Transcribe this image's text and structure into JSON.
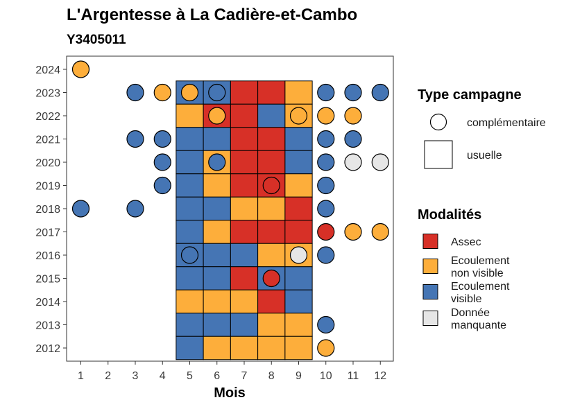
{
  "chart_data": {
    "type": "heatmap",
    "title": "L'Argentesse à La Cadière-et-Cambo",
    "subtitle": "Y3405011",
    "xlabel": "Mois",
    "ylabel": "",
    "x_ticks": [
      "1",
      "2",
      "3",
      "4",
      "5",
      "6",
      "7",
      "8",
      "9",
      "10",
      "11",
      "12"
    ],
    "y_ticks": [
      "2012",
      "2013",
      "2014",
      "2015",
      "2016",
      "2017",
      "2018",
      "2019",
      "2020",
      "2021",
      "2022",
      "2023",
      "2024"
    ],
    "colors": {
      "assec": "#d73027",
      "ecoulement_non_visible": "#fdae3b",
      "ecoulement_visible": "#4575b4",
      "donnee_manquante": "#e6e6e6"
    },
    "legend_campaign": {
      "title": "Type campagne",
      "items": [
        {
          "key": "complementaire",
          "label": "complémentaire",
          "shape": "circle"
        },
        {
          "key": "usuelle",
          "label": "usuelle",
          "shape": "square"
        }
      ]
    },
    "legend_modalites": {
      "title": "Modalités",
      "items": [
        {
          "key": "A",
          "lines": [
            "Assec"
          ],
          "color": "#d73027"
        },
        {
          "key": "N",
          "lines": [
            "Ecoulement",
            "non visible"
          ],
          "color": "#fdae3b"
        },
        {
          "key": "V",
          "lines": [
            "Ecoulement",
            "visible"
          ],
          "color": "#4575b4"
        },
        {
          "key": "M",
          "lines": [
            "Donnée",
            "manquante"
          ],
          "color": "#e6e6e6"
        }
      ]
    },
    "usuelle": [
      {
        "year": 2023,
        "values": {
          "5": "V",
          "6": "V",
          "7": "A",
          "8": "A",
          "9": "N"
        }
      },
      {
        "year": 2022,
        "values": {
          "5": "N",
          "6": "A",
          "7": "A",
          "8": "V",
          "9": "N"
        }
      },
      {
        "year": 2021,
        "values": {
          "5": "V",
          "6": "V",
          "7": "A",
          "8": "A",
          "9": "V"
        }
      },
      {
        "year": 2020,
        "values": {
          "5": "V",
          "6": "N",
          "7": "A",
          "8": "A",
          "9": "V"
        }
      },
      {
        "year": 2019,
        "values": {
          "5": "V",
          "6": "N",
          "7": "A",
          "8": "A",
          "9": "N"
        }
      },
      {
        "year": 2018,
        "values": {
          "5": "V",
          "6": "V",
          "7": "N",
          "8": "N",
          "9": "A"
        }
      },
      {
        "year": 2017,
        "values": {
          "5": "V",
          "6": "N",
          "7": "A",
          "8": "A",
          "9": "A"
        }
      },
      {
        "year": 2016,
        "values": {
          "5": "V",
          "6": "V",
          "7": "V",
          "8": "N",
          "9": "N"
        }
      },
      {
        "year": 2015,
        "values": {
          "5": "V",
          "6": "V",
          "7": "A",
          "8": "V",
          "9": "V"
        }
      },
      {
        "year": 2014,
        "values": {
          "5": "N",
          "6": "N",
          "7": "N",
          "8": "A",
          "9": "V"
        }
      },
      {
        "year": 2013,
        "values": {
          "5": "V",
          "6": "V",
          "7": "V",
          "8": "N",
          "9": "N"
        }
      },
      {
        "year": 2012,
        "values": {
          "5": "V",
          "6": "N",
          "7": "N",
          "8": "N",
          "9": "N"
        }
      }
    ],
    "complementaire": [
      {
        "year": 2024,
        "month": 1,
        "v": "N"
      },
      {
        "year": 2023,
        "month": 3,
        "v": "V"
      },
      {
        "year": 2023,
        "month": 4,
        "v": "N"
      },
      {
        "year": 2023,
        "month": 5,
        "v": "N"
      },
      {
        "year": 2023,
        "month": 6,
        "v": "V"
      },
      {
        "year": 2023,
        "month": 10,
        "v": "V"
      },
      {
        "year": 2023,
        "month": 11,
        "v": "V"
      },
      {
        "year": 2023,
        "month": 12,
        "v": "V"
      },
      {
        "year": 2022,
        "month": 6,
        "v": "N"
      },
      {
        "year": 2022,
        "month": 9,
        "v": "N"
      },
      {
        "year": 2022,
        "month": 10,
        "v": "N"
      },
      {
        "year": 2022,
        "month": 11,
        "v": "N"
      },
      {
        "year": 2021,
        "month": 3,
        "v": "V"
      },
      {
        "year": 2021,
        "month": 4,
        "v": "V"
      },
      {
        "year": 2021,
        "month": 10,
        "v": "V"
      },
      {
        "year": 2021,
        "month": 11,
        "v": "V"
      },
      {
        "year": 2020,
        "month": 4,
        "v": "V"
      },
      {
        "year": 2020,
        "month": 6,
        "v": "V"
      },
      {
        "year": 2020,
        "month": 10,
        "v": "V"
      },
      {
        "year": 2020,
        "month": 11,
        "v": "M"
      },
      {
        "year": 2020,
        "month": 12,
        "v": "M"
      },
      {
        "year": 2019,
        "month": 4,
        "v": "V"
      },
      {
        "year": 2019,
        "month": 8,
        "v": "A"
      },
      {
        "year": 2019,
        "month": 10,
        "v": "V"
      },
      {
        "year": 2018,
        "month": 1,
        "v": "V"
      },
      {
        "year": 2018,
        "month": 3,
        "v": "V"
      },
      {
        "year": 2018,
        "month": 10,
        "v": "V"
      },
      {
        "year": 2017,
        "month": 10,
        "v": "A"
      },
      {
        "year": 2017,
        "month": 11,
        "v": "N"
      },
      {
        "year": 2017,
        "month": 12,
        "v": "N"
      },
      {
        "year": 2016,
        "month": 5,
        "v": "V"
      },
      {
        "year": 2016,
        "month": 9,
        "v": "M"
      },
      {
        "year": 2016,
        "month": 10,
        "v": "V"
      },
      {
        "year": 2015,
        "month": 8,
        "v": "A"
      },
      {
        "year": 2013,
        "month": 10,
        "v": "V"
      },
      {
        "year": 2012,
        "month": 10,
        "v": "N"
      }
    ]
  }
}
